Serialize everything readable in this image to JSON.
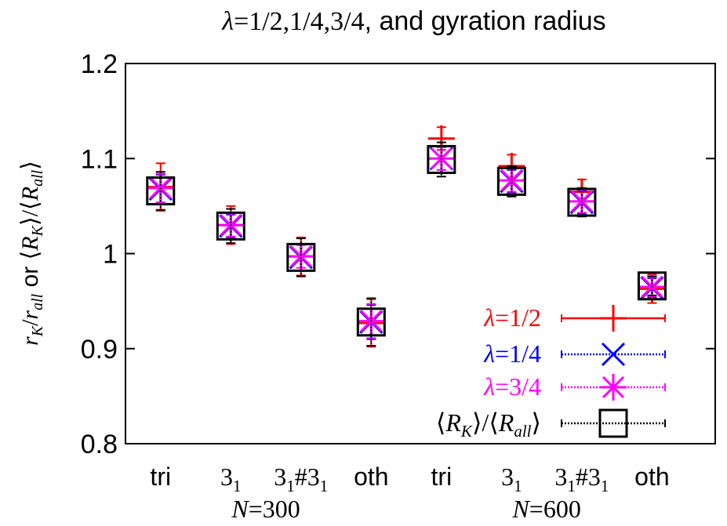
{
  "chart_data": {
    "type": "scatter",
    "title": {
      "lambda_sym": "λ",
      "values": "=1/2,1/4,3/4",
      "rest": ", and gyration radius"
    },
    "ylabel": {
      "r": "r",
      "K": "K",
      "slash": "/",
      "all": "all",
      "or": " or ",
      "open": "⟨",
      "R": "R",
      "close": "⟩"
    },
    "ylim": [
      0.8,
      1.2
    ],
    "yticks": [
      "0.8",
      "0.9",
      "1",
      "1.1",
      "1.2"
    ],
    "ytick_values": [
      0.8,
      0.9,
      1.0,
      1.1,
      1.2
    ],
    "xlim": [
      0,
      8.4
    ],
    "categories": [
      {
        "x": 0.5,
        "label": "tri",
        "style": "sans"
      },
      {
        "x": 1.5,
        "label": "3",
        "sub": "1",
        "style": "math"
      },
      {
        "x": 2.5,
        "label": "3",
        "sub": "1",
        "mid": "#3",
        "sub2": "1",
        "style": "math"
      },
      {
        "x": 3.5,
        "label": "oth",
        "style": "sans"
      },
      {
        "x": 4.5,
        "label": "tri",
        "style": "sans"
      },
      {
        "x": 5.5,
        "label": "3",
        "sub": "1",
        "style": "math"
      },
      {
        "x": 6.5,
        "label": "3",
        "sub": "1",
        "mid": "#3",
        "sub2": "1",
        "style": "math"
      },
      {
        "x": 7.5,
        "label": "oth",
        "style": "sans"
      }
    ],
    "group_labels": [
      {
        "x": 2.0,
        "N": "N",
        "value": "=300"
      },
      {
        "x": 6.0,
        "N": "N",
        "value": "=600"
      }
    ],
    "grid": false,
    "legend_position": "bottom-right",
    "series": [
      {
        "name": "λ=1/2",
        "legend": {
          "sym": "λ",
          "val": "=1/2"
        },
        "color": "#ff0000",
        "marker": "plus",
        "dash": "",
        "values": [
          1.07,
          1.03,
          0.997,
          0.927,
          1.121,
          1.092,
          1.065,
          0.963
        ],
        "errors": [
          0.025,
          0.02,
          0.02,
          0.025,
          0.012,
          0.012,
          0.013,
          0.015
        ]
      },
      {
        "name": "λ=1/4",
        "legend": {
          "sym": "λ",
          "val": "=1/4"
        },
        "color": "#0000ff",
        "marker": "x",
        "dash": "2,2",
        "values": [
          1.068,
          1.029,
          0.996,
          0.928,
          1.1,
          1.076,
          1.054,
          0.964
        ],
        "errors": [
          0.015,
          0.012,
          0.014,
          0.018,
          0.012,
          0.012,
          0.012,
          0.01
        ]
      },
      {
        "name": "λ=3/4",
        "legend": {
          "sym": "λ",
          "val": "=3/4"
        },
        "color": "#ff00ff",
        "marker": "asterisk",
        "dash": "2,2",
        "values": [
          1.069,
          1.03,
          0.997,
          0.929,
          1.1,
          1.077,
          1.055,
          0.965
        ],
        "errors": [
          0.015,
          0.012,
          0.012,
          0.018,
          0.012,
          0.012,
          0.012,
          0.01
        ]
      },
      {
        "name": "⟨RK⟩/⟨Rall⟩",
        "legend": {
          "open": "⟨",
          "R": "R",
          "K": "K",
          "mid": "⟩/⟨",
          "all": "all",
          "close": "⟩"
        },
        "color": "#000000",
        "marker": "square",
        "dash": "2,2",
        "values": [
          1.066,
          1.029,
          0.996,
          0.928,
          1.099,
          1.076,
          1.054,
          0.966
        ],
        "errors": [
          0.02,
          0.018,
          0.02,
          0.025,
          0.018,
          0.016,
          0.015,
          0.01
        ]
      }
    ]
  }
}
